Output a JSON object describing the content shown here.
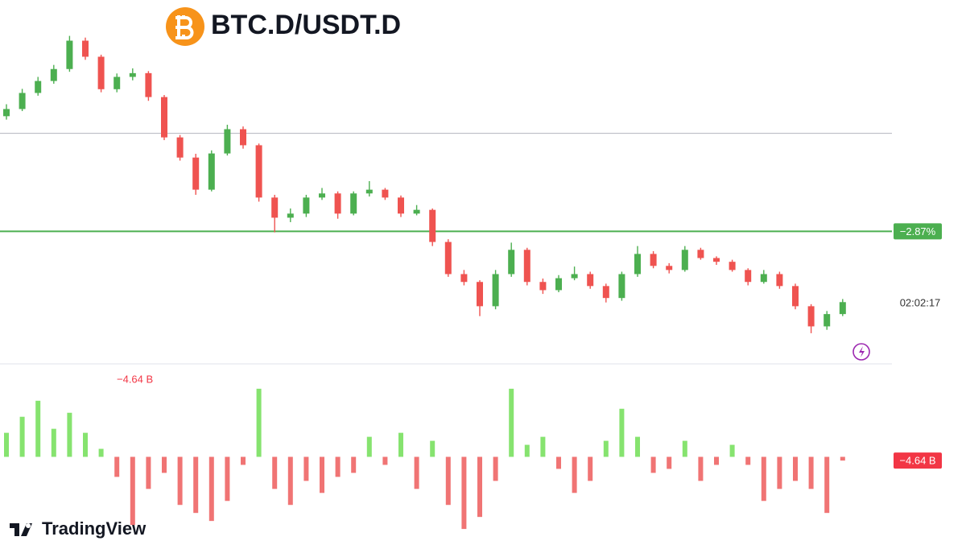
{
  "chart_data": [
    {
      "type": "candlestick",
      "title": "BTC.D/USDT.D",
      "countdown": "02:02:17",
      "up_color": "#4caf50",
      "down_color": "#ef5350",
      "ylim": [
        -6.7,
        3.9
      ],
      "reference_line": 0,
      "level_line": {
        "value": -2.87,
        "label": "−2.87%",
        "color": "#4caf50"
      },
      "candles": [
        [
          0.5,
          0.85,
          0.4,
          0.71
        ],
        [
          0.71,
          1.3,
          0.65,
          1.18
        ],
        [
          1.18,
          1.65,
          1.1,
          1.53
        ],
        [
          1.53,
          2.0,
          1.45,
          1.88
        ],
        [
          1.88,
          2.85,
          1.8,
          2.71
        ],
        [
          2.71,
          2.8,
          2.15,
          2.24
        ],
        [
          2.24,
          2.3,
          1.2,
          1.29
        ],
        [
          1.29,
          1.75,
          1.2,
          1.65
        ],
        [
          1.65,
          1.9,
          1.55,
          1.76
        ],
        [
          1.76,
          1.82,
          0.95,
          1.06
        ],
        [
          1.06,
          1.12,
          -0.2,
          -0.12
        ],
        [
          -0.12,
          -0.05,
          -0.8,
          -0.71
        ],
        [
          -0.71,
          -0.6,
          -1.8,
          -1.65
        ],
        [
          -1.65,
          -0.5,
          -1.7,
          -0.59
        ],
        [
          -0.59,
          0.25,
          -0.65,
          0.12
        ],
        [
          0.12,
          0.2,
          -0.45,
          -0.35
        ],
        [
          -0.35,
          -0.3,
          -2.0,
          -1.88
        ],
        [
          -1.88,
          -1.8,
          -2.9,
          -2.47
        ],
        [
          -2.47,
          -2.2,
          -2.6,
          -2.35
        ],
        [
          -2.35,
          -1.8,
          -2.45,
          -1.88
        ],
        [
          -1.88,
          -1.6,
          -1.95,
          -1.76
        ],
        [
          -1.76,
          -1.7,
          -2.5,
          -2.35
        ],
        [
          -2.35,
          -1.7,
          -2.4,
          -1.76
        ],
        [
          -1.76,
          -1.4,
          -1.85,
          -1.65
        ],
        [
          -1.65,
          -1.6,
          -1.95,
          -1.88
        ],
        [
          -1.88,
          -1.82,
          -2.45,
          -2.35
        ],
        [
          -2.35,
          -2.1,
          -2.4,
          -2.24
        ],
        [
          -2.24,
          -2.2,
          -3.3,
          -3.18
        ],
        [
          -3.18,
          -3.1,
          -4.2,
          -4.12
        ],
        [
          -4.12,
          -4.0,
          -4.45,
          -4.35
        ],
        [
          -4.35,
          -4.3,
          -5.35,
          -5.06
        ],
        [
          -5.06,
          -4.0,
          -5.15,
          -4.12
        ],
        [
          -4.12,
          -3.2,
          -4.2,
          -3.41
        ],
        [
          -3.41,
          -3.35,
          -4.45,
          -4.35
        ],
        [
          -4.35,
          -4.25,
          -4.7,
          -4.59
        ],
        [
          -4.59,
          -4.15,
          -4.65,
          -4.24
        ],
        [
          -4.24,
          -3.9,
          -4.3,
          -4.12
        ],
        [
          -4.12,
          -4.05,
          -4.55,
          -4.47
        ],
        [
          -4.47,
          -4.4,
          -4.95,
          -4.82
        ],
        [
          -4.82,
          -4.05,
          -4.9,
          -4.12
        ],
        [
          -4.12,
          -3.3,
          -4.2,
          -3.53
        ],
        [
          -3.53,
          -3.45,
          -3.95,
          -3.88
        ],
        [
          -3.88,
          -3.8,
          -4.1,
          -4.0
        ],
        [
          -4.0,
          -3.3,
          -4.05,
          -3.41
        ],
        [
          -3.41,
          -3.35,
          -3.7,
          -3.65
        ],
        [
          -3.65,
          -3.6,
          -3.85,
          -3.76
        ],
        [
          -3.76,
          -3.7,
          -4.05,
          -4.0
        ],
        [
          -4.0,
          -3.95,
          -4.45,
          -4.35
        ],
        [
          -4.35,
          -4.0,
          -4.4,
          -4.12
        ],
        [
          -4.12,
          -4.05,
          -4.55,
          -4.47
        ],
        [
          -4.47,
          -4.4,
          -5.15,
          -5.06
        ],
        [
          -5.06,
          -5.0,
          -5.85,
          -5.65
        ],
        [
          -5.65,
          -5.2,
          -5.75,
          -5.29
        ],
        [
          -5.29,
          -4.85,
          -5.35,
          -4.94
        ]
      ]
    },
    {
      "type": "bar",
      "up_color": "#86e36f",
      "down_color": "#f07474",
      "ylim": [
        -110,
        113
      ],
      "last_value_label": "−4.64 B",
      "values": [
        30,
        50,
        70,
        35,
        55,
        30,
        10,
        -25,
        -85,
        -40,
        -20,
        -60,
        -70,
        -80,
        -55,
        -10,
        85,
        -40,
        -60,
        -30,
        -45,
        -25,
        -20,
        25,
        -10,
        30,
        -40,
        20,
        -60,
        -90,
        -75,
        -30,
        85,
        15,
        25,
        -15,
        -45,
        -30,
        20,
        60,
        25,
        -20,
        -15,
        20,
        -30,
        -10,
        15,
        -10,
        -55,
        -40,
        -30,
        -40,
        -70,
        -4.64
      ]
    }
  ],
  "brand": "TradingView"
}
